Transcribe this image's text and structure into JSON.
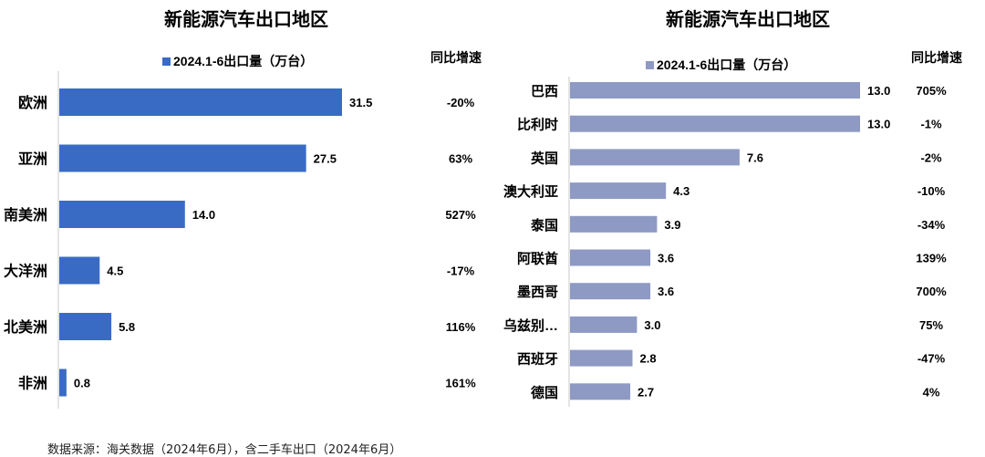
{
  "chart_data": [
    {
      "type": "bar",
      "orientation": "horizontal",
      "title": "新能源汽车出口地区",
      "legend": "2024.1-6出口量（万台）",
      "growth_header": "同比增速",
      "color": "#3a6bc4",
      "categories": [
        "欧洲",
        "亚洲",
        "南美洲",
        "大洋洲",
        "北美洲",
        "非洲"
      ],
      "values": [
        31.5,
        27.5,
        14.0,
        4.5,
        5.8,
        0.8
      ],
      "value_labels": [
        "31.5",
        "27.5",
        "14.0",
        "4.5",
        "5.8",
        "0.8"
      ],
      "growth": [
        "-20%",
        "63%",
        "527%",
        "-17%",
        "116%",
        "161%"
      ],
      "xlim": [
        0,
        31.5
      ]
    },
    {
      "type": "bar",
      "orientation": "horizontal",
      "title": "新能源汽车出口地区",
      "legend": "2024.1-6出口量（万台）",
      "growth_header": "同比增速",
      "color": "#8e9ac4",
      "categories": [
        "巴西",
        "比利时",
        "英国",
        "澳大利亚",
        "泰国",
        "阿联酋",
        "墨西哥",
        "乌兹别…",
        "西班牙",
        "德国"
      ],
      "values": [
        13.0,
        13.0,
        7.6,
        4.3,
        3.9,
        3.6,
        3.6,
        3.0,
        2.8,
        2.7
      ],
      "value_labels": [
        "13.0",
        "13.0",
        "7.6",
        "4.3",
        "3.9",
        "3.6",
        "3.6",
        "3.0",
        "2.8",
        "2.7"
      ],
      "growth": [
        "705%",
        "-1%",
        "-2%",
        "-10%",
        "-34%",
        "139%",
        "700%",
        "75%",
        "-47%",
        "4%"
      ],
      "xlim": [
        0,
        13.0
      ]
    }
  ],
  "source_note": "数据来源：海关数据（2024年6月），含二手车出口（2024年6月）"
}
